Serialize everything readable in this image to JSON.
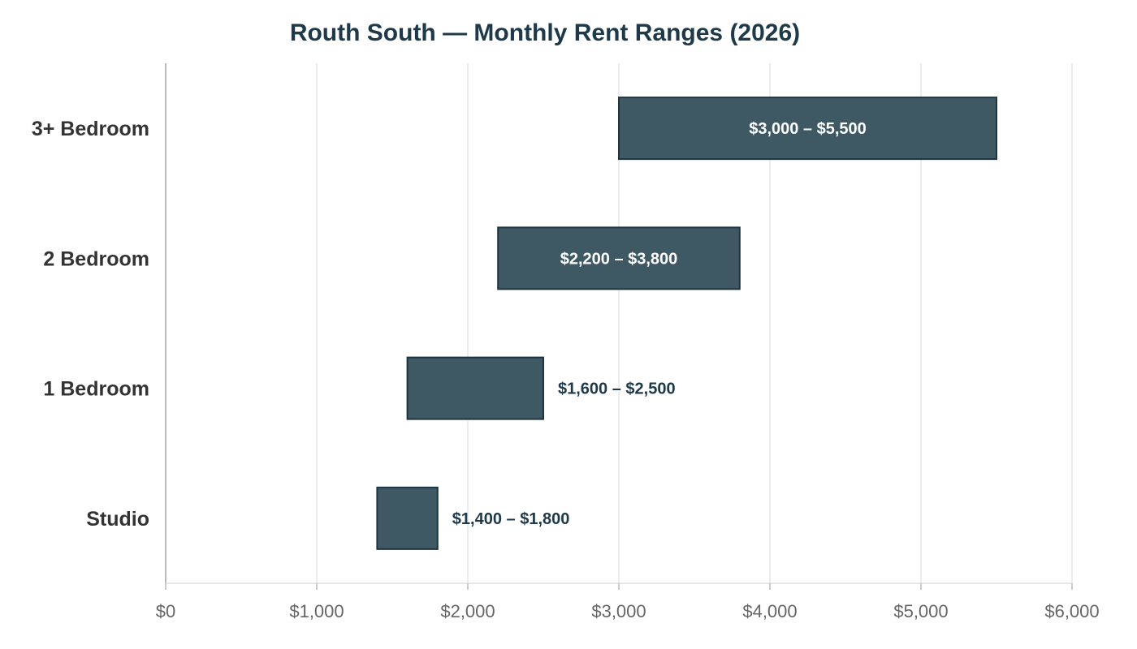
{
  "chart_data": {
    "type": "bar",
    "orientation": "horizontal-range",
    "title": "Routh South — Monthly Rent Ranges (2026)",
    "xlabel": "",
    "ylabel": "",
    "xlim": [
      0,
      6000
    ],
    "x_ticks": [
      0,
      1000,
      2000,
      3000,
      4000,
      5000,
      6000
    ],
    "x_tick_labels": [
      "$0",
      "$1,000",
      "$2,000",
      "$3,000",
      "$4,000",
      "$5,000",
      "$6,000"
    ],
    "grid": "vertical",
    "legend": "none",
    "categories": [
      "3+ Bedroom",
      "2 Bedroom",
      "1 Bedroom",
      "Studio"
    ],
    "ranges": [
      {
        "category": "3+ Bedroom",
        "low": 3000,
        "high": 5500,
        "label": "$3,000 – $5,500",
        "label_position": "inside"
      },
      {
        "category": "2 Bedroom",
        "low": 2200,
        "high": 3800,
        "label": "$2,200 – $3,800",
        "label_position": "inside"
      },
      {
        "category": "1 Bedroom",
        "low": 1600,
        "high": 2500,
        "label": "$1,600 – $2,500",
        "label_position": "outside"
      },
      {
        "category": "Studio",
        "low": 1400,
        "high": 1800,
        "label": "$1,400 – $1,800",
        "label_position": "outside"
      }
    ],
    "colors": {
      "bar_fill": "#3e5964",
      "bar_stroke": "#1e3440",
      "title": "#1e3a4a",
      "label_inside": "#ffffff",
      "label_outside": "#1e3a4a",
      "grid": "#e6e6e6",
      "axis": "#bbbbbb"
    }
  }
}
